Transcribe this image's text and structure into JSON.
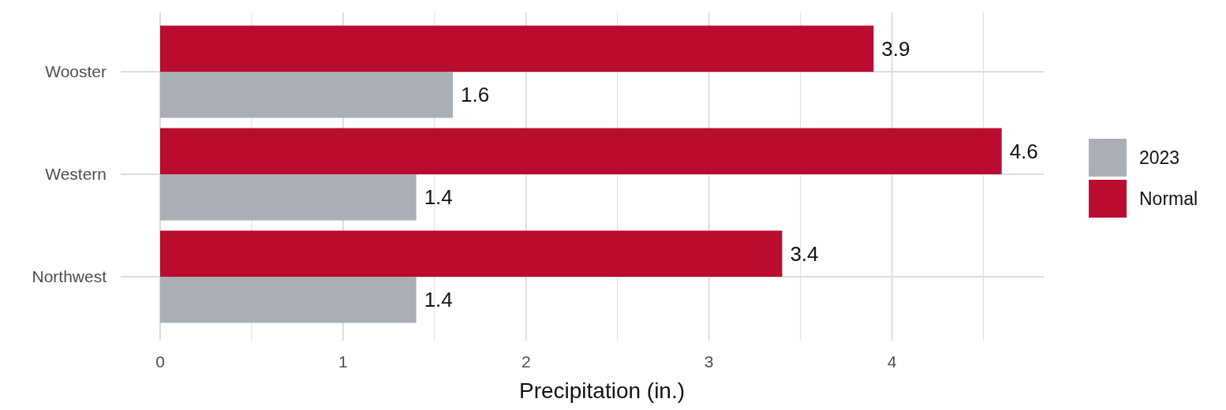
{
  "chart_data": {
    "type": "bar",
    "orientation": "horizontal",
    "xlabel": "Precipitation (in.)",
    "categories": [
      "Wooster",
      "Western",
      "Northwest"
    ],
    "series": [
      {
        "name": "2023",
        "color": "#a9afb5",
        "values": [
          1.6,
          1.4,
          1.4
        ]
      },
      {
        "name": "Normal",
        "color": "#ba0c2f",
        "values": [
          3.9,
          4.6,
          3.4
        ]
      }
    ],
    "xlim": [
      0,
      4.83
    ],
    "xticks": [
      0,
      {
        "value": 0.5,
        "label": null
      },
      1,
      {
        "value": 1.5,
        "label": null
      },
      2,
      {
        "value": 2.5,
        "label": null
      },
      3,
      {
        "value": 3.5,
        "label": null
      },
      4,
      {
        "value": 4.5,
        "label": null
      }
    ],
    "grid": true,
    "legend": "right",
    "data_labels": true
  }
}
